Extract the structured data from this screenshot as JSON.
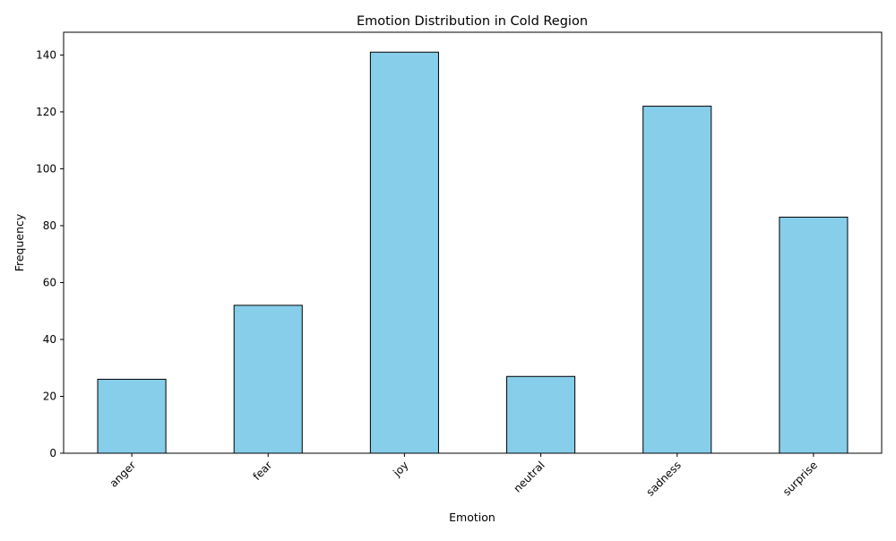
{
  "chart_data": {
    "type": "bar",
    "title": "Emotion Distribution in Cold Region",
    "xlabel": "Emotion",
    "ylabel": "Frequency",
    "categories": [
      "anger",
      "fear",
      "joy",
      "neutral",
      "sadness",
      "surprise"
    ],
    "values": [
      26,
      52,
      141,
      27,
      122,
      83
    ],
    "ylim": [
      0,
      148
    ],
    "yticks": [
      0,
      20,
      40,
      60,
      80,
      100,
      120,
      140
    ],
    "grid": false,
    "legend": "none",
    "colors": {
      "bar_fill": "#87CEEB",
      "bar_edge": "#000000"
    }
  }
}
